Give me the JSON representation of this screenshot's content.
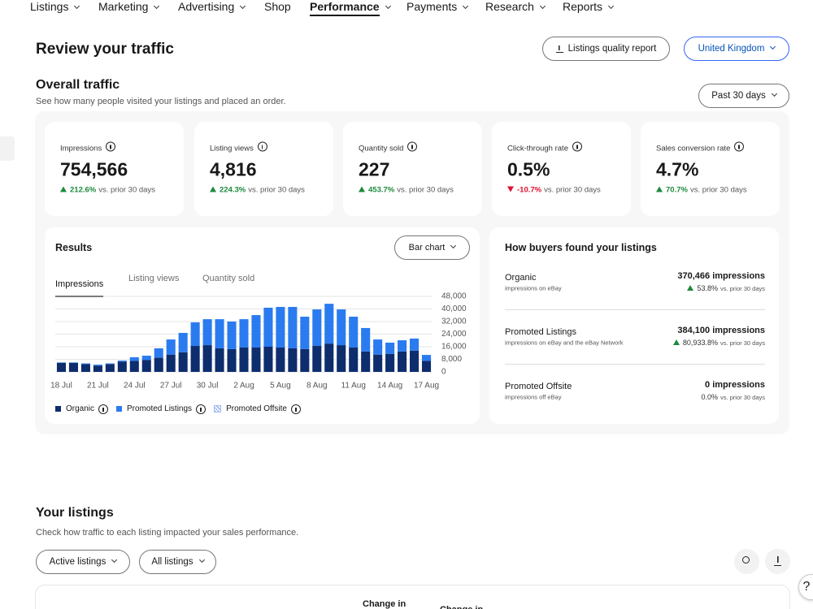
{
  "nav": [
    "Listings",
    "Marketing",
    "Advertising",
    "Shop",
    "Performance",
    "Payments",
    "Research",
    "Reports"
  ],
  "active_nav": "Performance",
  "header": {
    "title": "Review your traffic",
    "report_button": "Listings quality report",
    "region": "United Kingdom"
  },
  "overview": {
    "title": "Overall traffic",
    "subtitle": "See how many people visited your listings and placed an order.",
    "period": "Past 30 days"
  },
  "metrics": [
    {
      "label": "Impressions",
      "value": "754,566",
      "change": "212.6%",
      "compare": "vs. prior 30 days",
      "direction": "up"
    },
    {
      "label": "Listing views",
      "value": "4,816",
      "change": "224.3%",
      "compare": "vs. prior 30 days",
      "direction": "up"
    },
    {
      "label": "Quantity sold",
      "value": "227",
      "change": "453.7%",
      "compare": "vs. prior 30 days",
      "direction": "up"
    },
    {
      "label": "Click-through rate",
      "value": "0.5%",
      "change": "-10.7%",
      "compare": "vs. prior 30 days",
      "direction": "down"
    },
    {
      "label": "Sales conversion rate",
      "value": "4.7%",
      "change": "70.7%",
      "compare": "vs. prior 30 days",
      "direction": "up"
    }
  ],
  "results": {
    "title": "Results",
    "view": "Bar chart",
    "tabs": [
      "Impressions",
      "Listing views",
      "Quantity sold"
    ]
  },
  "chart_data": {
    "type": "bar",
    "stacked": true,
    "yaxis_position": "right",
    "grid": true,
    "categories": [
      "18 Jul",
      null,
      null,
      "21 Jul",
      null,
      null,
      "24 Jul",
      null,
      null,
      "27 Jul",
      null,
      null,
      "30 Jul",
      null,
      null,
      "2 Aug",
      null,
      null,
      "5 Aug",
      null,
      null,
      "8 Aug",
      null,
      null,
      "11 Aug",
      null,
      null,
      "14 Aug",
      null,
      null,
      "17 Aug"
    ],
    "series": [
      {
        "name": "Organic",
        "color": "#0e2d6d",
        "values": [
          5700,
          5700,
          5000,
          4000,
          5000,
          6500,
          7000,
          7500,
          9000,
          11000,
          12500,
          16500,
          17000,
          15000,
          14500,
          15500,
          15500,
          16000,
          15500,
          15000,
          14500,
          16500,
          18000,
          17000,
          15500,
          13000,
          11000,
          11500,
          13000,
          13500,
          7000
        ]
      },
      {
        "name": "Promoted Listings",
        "color": "#2b7bf0",
        "values": [
          300,
          300,
          400,
          600,
          400,
          700,
          2300,
          2800,
          6000,
          9600,
          12300,
          15000,
          16500,
          18500,
          17500,
          18000,
          20600,
          24800,
          25800,
          26300,
          20600,
          23200,
          25300,
          22700,
          19600,
          14900,
          9600,
          7100,
          7100,
          7700,
          3800
        ]
      },
      {
        "name": "Promoted Offsite",
        "color": "#9fbdf0",
        "values": [
          0,
          0,
          0,
          0,
          0,
          0,
          0,
          0,
          0,
          0,
          0,
          0,
          0,
          0,
          0,
          0,
          0,
          0,
          0,
          0,
          0,
          0,
          0,
          0,
          0,
          0,
          0,
          0,
          0,
          0,
          0
        ]
      }
    ],
    "ylim": [
      0,
      48000
    ],
    "yticks": [
      0,
      {
        "value": 8000,
        "label": "8,000"
      },
      {
        "value": 16000,
        "label": "16,000"
      },
      {
        "value": 24000,
        "label": "24,000"
      },
      {
        "value": 32000,
        "label": "32,000"
      },
      {
        "value": 40000,
        "label": "40,000"
      },
      {
        "value": 48000,
        "label": "48,000"
      }
    ]
  },
  "buyers": {
    "title": "How buyers found your listings",
    "channels": [
      {
        "name": "Organic",
        "description": "impressions on eBay",
        "value": "370,466 impressions",
        "change": "53.8%",
        "compare": "vs. prior 30 days",
        "direction": "up"
      },
      {
        "name": "Promoted Listings",
        "description": "impressions on eBay and the eBay Network",
        "value": "384,100 impressions",
        "change": "80,933.8%",
        "compare": "vs. prior 30 days",
        "direction": "up"
      },
      {
        "name": "Promoted Offsite",
        "description": "impressions off eBay",
        "value": "0 impressions",
        "change": "0.0%",
        "compare": "vs. prior 30 days"
      }
    ]
  },
  "listings": {
    "title": "Your listings",
    "subtitle": "Check how traffic to each listing impacted your sales performance.",
    "filters": [
      "Active listings",
      "All listings"
    ],
    "table_headers": [
      "Change in",
      "Change in"
    ]
  },
  "help": "?"
}
